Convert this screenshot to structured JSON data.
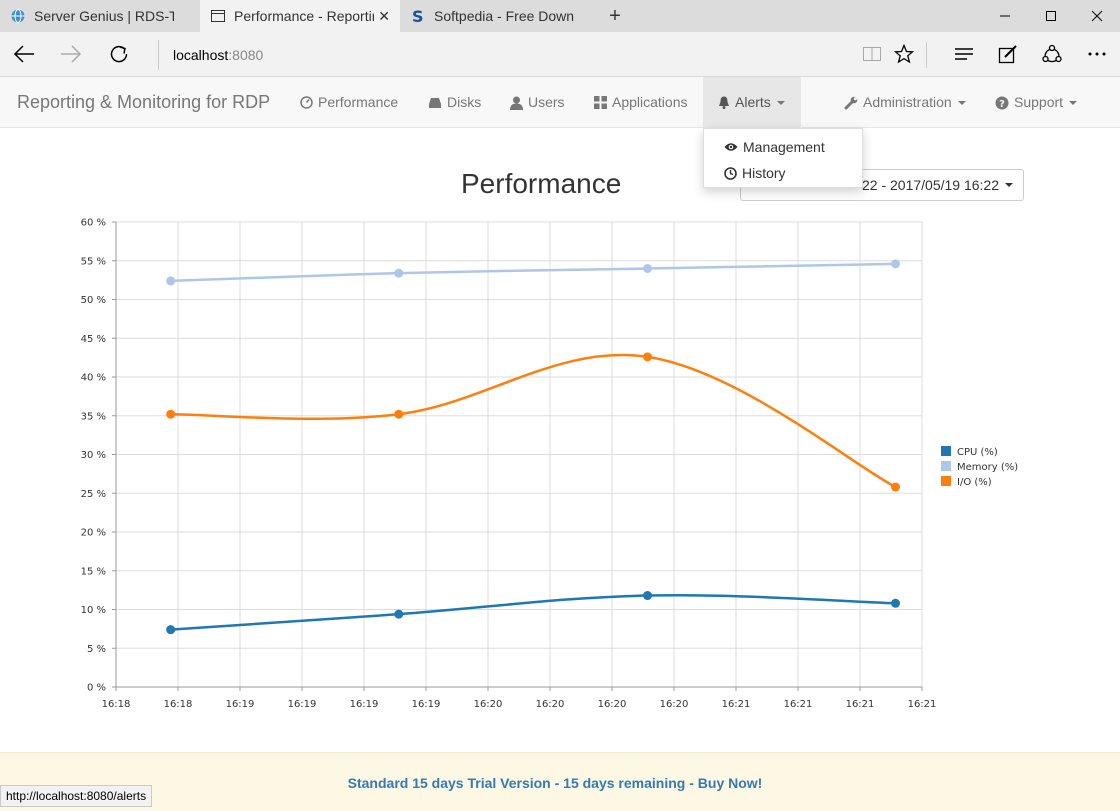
{
  "browser": {
    "tabs": [
      {
        "title": "Server Genius | RDS-Tools",
        "active": false
      },
      {
        "title": "Performance - Reporting",
        "active": true
      },
      {
        "title": "Softpedia - Free Downloads",
        "active": false
      }
    ],
    "new_tab_glyph": "+",
    "url_host": "localhost",
    "url_port": ":8080",
    "status_url": "http://localhost:8080/alerts"
  },
  "navbar": {
    "brand": "Reporting & Monitoring for RDP",
    "items": [
      {
        "label": "Performance",
        "icon": "dashboard-icon"
      },
      {
        "label": "Disks",
        "icon": "hdd-icon"
      },
      {
        "label": "Users",
        "icon": "user-icon"
      },
      {
        "label": "Applications",
        "icon": "th-large-icon"
      },
      {
        "label": "Alerts",
        "icon": "bell-icon",
        "open": true
      },
      {
        "label": "Administration",
        "icon": "wrench-icon"
      },
      {
        "label": "Support",
        "icon": "question-sign-icon"
      }
    ],
    "alerts_menu": [
      {
        "label": "Management",
        "icon": "eye-icon"
      },
      {
        "label": "History",
        "icon": "clock-icon"
      }
    ]
  },
  "page": {
    "title": "Performance",
    "date_range_visible": "22 - 2017/05/19 16:22"
  },
  "chart_data": {
    "type": "line",
    "y_ticks": [
      "0 %",
      "5 %",
      "10 %",
      "15 %",
      "20 %",
      "25 %",
      "30 %",
      "35 %",
      "40 %",
      "45 %",
      "50 %",
      "55 %",
      "60 %"
    ],
    "ylim": [
      0,
      60
    ],
    "x_ticks": [
      "16:18",
      "16:18",
      "16:19",
      "16:19",
      "16:19",
      "16:19",
      "16:20",
      "16:20",
      "16:20",
      "16:20",
      "16:21",
      "16:21",
      "16:21",
      "16:21"
    ],
    "grid": true,
    "legend_position": "right",
    "series": [
      {
        "name": "CPU (%)",
        "color": "#1f77b4",
        "values": [
          7.4,
          9.4,
          11.8,
          10.8
        ]
      },
      {
        "name": "Memory (%)",
        "color": "#aec7e8",
        "values": [
          52.4,
          53.4,
          54.0,
          54.6
        ]
      },
      {
        "name": "I/O (%)",
        "color": "#ff7f0e",
        "values": [
          35.2,
          35.2,
          42.6,
          25.8
        ]
      }
    ]
  },
  "footer": {
    "trial_text": "Standard 15 days Trial Version - 15 days remaining - Buy Now!"
  }
}
